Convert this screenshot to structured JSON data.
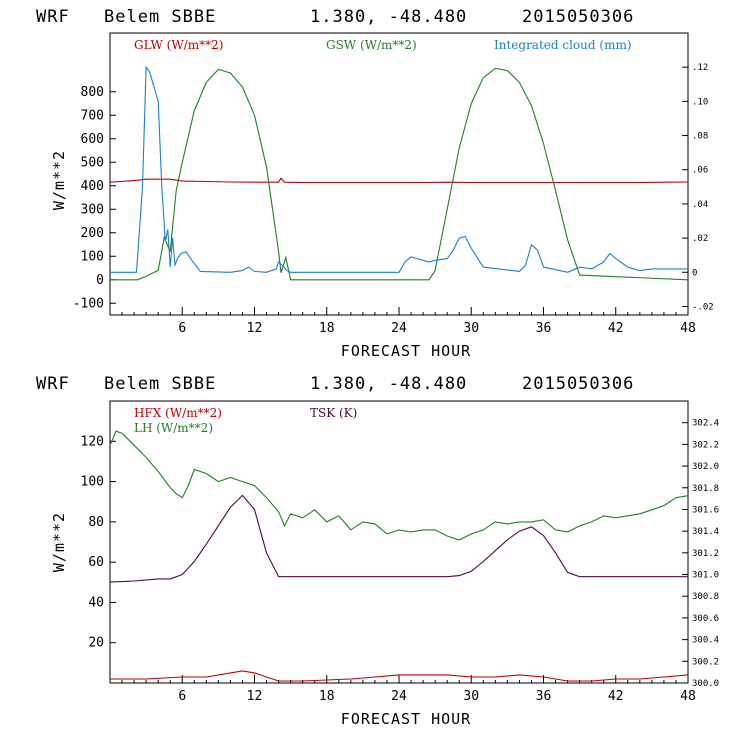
{
  "chart_data": [
    {
      "type": "line",
      "header": {
        "model": "WRF",
        "station": "Belem SBBE",
        "coords": "1.380, -48.480",
        "date": "2015050306"
      },
      "xlabel": "FORECAST HOUR",
      "ylabel": "W/m**2",
      "xlim": [
        0,
        48
      ],
      "ylim": [
        -150,
        1050
      ],
      "y2lim": [
        -0.025,
        0.14
      ],
      "x_ticks": [
        "6",
        "12",
        "18",
        "24",
        "30",
        "36",
        "42",
        "48"
      ],
      "y_ticks": [
        "-100",
        "0",
        "100",
        "200",
        "300",
        "400",
        "500",
        "600",
        "700",
        "800"
      ],
      "y2_ticks": [
        "-.02",
        "0",
        ".02",
        ".04",
        ".06",
        ".08",
        ".10",
        ".12"
      ],
      "series": [
        {
          "name": "GLW (W/m**2)",
          "axis": "left",
          "color": "#c00000",
          "x": [
            0,
            2,
            3,
            5,
            6,
            8,
            10,
            12,
            14,
            14.2,
            14.5,
            16,
            18,
            20,
            24,
            26,
            28,
            30,
            32,
            34,
            36,
            38,
            40,
            42,
            44,
            46,
            48
          ],
          "values": [
            415,
            422,
            428,
            428,
            420,
            418,
            416,
            415,
            415,
            432,
            415,
            414,
            414,
            414,
            414,
            414,
            415,
            414,
            414,
            414,
            414,
            414,
            414,
            414,
            414,
            415,
            416
          ]
        },
        {
          "name": "GSW (W/m**2)",
          "axis": "left",
          "color": "#208020",
          "x": [
            0,
            2.3,
            3,
            4,
            4.5,
            5,
            5.5,
            6,
            7,
            8,
            9,
            10,
            11,
            12,
            13,
            14,
            14.2,
            14.6,
            15,
            26.5,
            27,
            28,
            29,
            30,
            31,
            32,
            33,
            34,
            35,
            36,
            37,
            38,
            39,
            48
          ],
          "values": [
            0,
            0,
            15,
            40,
            180,
            120,
            380,
            500,
            720,
            840,
            895,
            880,
            820,
            700,
            480,
            120,
            30,
            95,
            0,
            0,
            40,
            300,
            560,
            750,
            860,
            900,
            890,
            840,
            740,
            580,
            380,
            170,
            20,
            0
          ]
        },
        {
          "name": "Integrated cloud (mm)",
          "axis": "right",
          "color": "#1a7fd4",
          "x": [
            0,
            1.5,
            2.2,
            2.7,
            3,
            3.3,
            3.6,
            4,
            4.3,
            4.6,
            4.8,
            5,
            5.2,
            5.4,
            5.6,
            5.9,
            6.3,
            6.8,
            7.5,
            10,
            11,
            11.5,
            12,
            13,
            13.8,
            14,
            14.3,
            14.7,
            15,
            24,
            24.5,
            25,
            25.5,
            26,
            26.5,
            27,
            28,
            28.5,
            29,
            29.5,
            30,
            31,
            34,
            34.5,
            35,
            35.5,
            36,
            38,
            39,
            40,
            41,
            41.5,
            42,
            43,
            44,
            45,
            48
          ],
          "values": [
            0,
            0,
            0,
            0.05,
            0.12,
            0.117,
            0.11,
            0.1,
            0.05,
            0.018,
            0.025,
            0.003,
            0.02,
            0.004,
            0.008,
            0.011,
            0.012,
            0.007,
            0.0005,
            0,
            0.001,
            0.003,
            0.0005,
            0,
            0.002,
            0.006,
            0.004,
            0.001,
            0,
            0,
            0.006,
            0.009,
            0.008,
            0.007,
            0.006,
            0.007,
            0.008,
            0.013,
            0.02,
            0.021,
            0.014,
            0.003,
            0.0005,
            0.004,
            0.016,
            0.013,
            0.003,
            0,
            0.003,
            0.002,
            0.006,
            0.011,
            0.008,
            0.003,
            0.001,
            0.002,
            0.002
          ]
        }
      ]
    },
    {
      "type": "line",
      "header": {
        "model": "WRF",
        "station": "Belem SBBE",
        "coords": "1.380, -48.480",
        "date": "2015050306"
      },
      "xlabel": "FORECAST HOUR",
      "ylabel": "W/m**2",
      "xlim": [
        0,
        48
      ],
      "ylim": [
        0,
        140
      ],
      "y2lim": [
        300.0,
        302.6
      ],
      "x_ticks": [
        "6",
        "12",
        "18",
        "24",
        "30",
        "36",
        "42",
        "48"
      ],
      "y_ticks": [
        "20",
        "40",
        "60",
        "80",
        "100",
        "120"
      ],
      "y2_ticks": [
        "300.0",
        "300.2",
        "300.4",
        "300.6",
        "300.8",
        "301.0",
        "301.2",
        "301.4",
        "301.6",
        "301.8",
        "302.0",
        "302.2",
        "302.4"
      ],
      "series": [
        {
          "name": "HFX (W/m**2)",
          "axis": "left",
          "color": "#c00000",
          "x": [
            0,
            3,
            6,
            8,
            10,
            11,
            12,
            13,
            14,
            16,
            20,
            22,
            24,
            26,
            28,
            30,
            32,
            34,
            36,
            38,
            40,
            42,
            44,
            46,
            48
          ],
          "values": [
            2,
            2,
            3,
            3,
            5,
            6,
            5,
            3,
            1,
            1,
            2,
            3,
            4,
            4,
            4,
            3,
            3,
            4,
            3,
            1,
            1,
            2,
            2,
            3,
            4
          ]
        },
        {
          "name": "LH (W/m**2)",
          "axis": "left",
          "color": "#208020",
          "x": [
            0,
            0.5,
            1,
            2,
            3,
            4,
            5,
            5.5,
            6,
            6.5,
            7,
            8,
            9,
            10,
            11,
            12,
            13,
            14,
            14.5,
            15,
            16,
            17,
            18,
            19,
            20,
            21,
            22,
            23,
            24,
            25,
            26,
            27,
            28,
            29,
            30,
            31,
            32,
            33,
            34,
            35,
            36,
            37,
            38,
            39,
            40,
            41,
            42,
            43,
            44,
            45,
            46,
            47,
            48
          ],
          "values": [
            118,
            125,
            124,
            118,
            112,
            105,
            97,
            94,
            92,
            98,
            106,
            104,
            100,
            102,
            100,
            98,
            92,
            85,
            78,
            84,
            82,
            86,
            80,
            83,
            76,
            80,
            79,
            74,
            76,
            75,
            76,
            76,
            73,
            71,
            74,
            76,
            80,
            79,
            80,
            80,
            81,
            76,
            75,
            78,
            80,
            83,
            82,
            83,
            84,
            86,
            88,
            92,
            93
          ]
        },
        {
          "name": "TSK (K)",
          "axis": "right",
          "color": "#4b0a46",
          "x": [
            0,
            2,
            4,
            5,
            6,
            7,
            8,
            9,
            10,
            11,
            12,
            12.5,
            13,
            14,
            15,
            20,
            24,
            26,
            28,
            29,
            30,
            31,
            32,
            33,
            34,
            35,
            36,
            37,
            38,
            39,
            44,
            48
          ],
          "values": [
            300.93,
            300.94,
            300.96,
            300.96,
            301.0,
            301.12,
            301.28,
            301.45,
            301.62,
            301.73,
            301.6,
            301.4,
            301.2,
            300.98,
            300.98,
            300.98,
            300.98,
            300.98,
            300.98,
            300.99,
            301.03,
            301.12,
            301.22,
            301.32,
            301.4,
            301.44,
            301.36,
            301.2,
            301.02,
            300.98,
            300.98,
            300.98
          ]
        }
      ]
    }
  ]
}
